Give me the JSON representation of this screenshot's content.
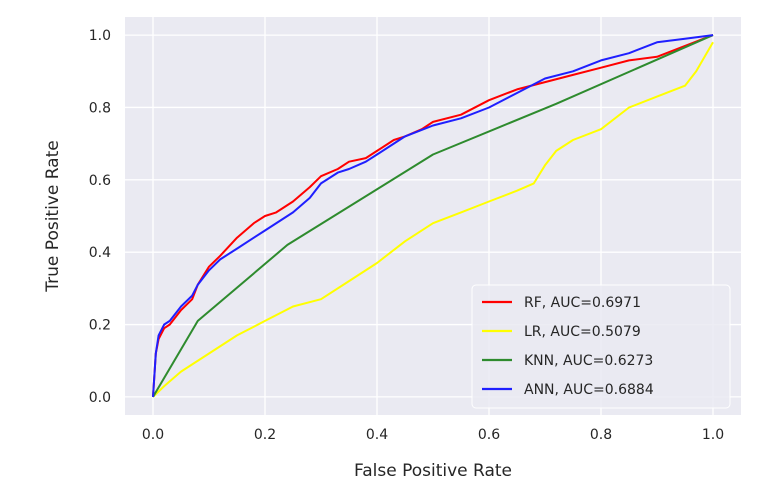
{
  "chart_data": {
    "type": "line",
    "xlabel": "False Positive Rate",
    "ylabel": "True Positive Rate",
    "xlim": [
      -0.05,
      1.05
    ],
    "ylim": [
      -0.05,
      1.05
    ],
    "xticks": [
      "0.0",
      "0.2",
      "0.4",
      "0.6",
      "0.8",
      "1.0"
    ],
    "yticks": [
      "0.0",
      "0.2",
      "0.4",
      "0.6",
      "0.8",
      "1.0"
    ],
    "grid": true,
    "legend_position": "lower-right",
    "series": [
      {
        "name": "RF, AUC=0.6971",
        "color": "#ff0000",
        "x": [
          0,
          0.005,
          0.01,
          0.02,
          0.03,
          0.05,
          0.07,
          0.08,
          0.1,
          0.12,
          0.15,
          0.18,
          0.2,
          0.22,
          0.25,
          0.28,
          0.3,
          0.33,
          0.35,
          0.38,
          0.4,
          0.43,
          0.45,
          0.48,
          0.5,
          0.55,
          0.6,
          0.65,
          0.7,
          0.75,
          0.8,
          0.85,
          0.9,
          0.95,
          1.0
        ],
        "y": [
          0,
          0.12,
          0.16,
          0.19,
          0.2,
          0.24,
          0.27,
          0.31,
          0.36,
          0.39,
          0.44,
          0.48,
          0.5,
          0.51,
          0.54,
          0.58,
          0.61,
          0.63,
          0.65,
          0.66,
          0.68,
          0.71,
          0.72,
          0.74,
          0.76,
          0.78,
          0.82,
          0.85,
          0.87,
          0.89,
          0.91,
          0.93,
          0.94,
          0.97,
          1.0
        ]
      },
      {
        "name": "LR, AUC=0.5079",
        "color": "#ffff00",
        "x": [
          0,
          0.02,
          0.05,
          0.1,
          0.15,
          0.2,
          0.25,
          0.3,
          0.35,
          0.4,
          0.45,
          0.5,
          0.55,
          0.6,
          0.65,
          0.68,
          0.7,
          0.72,
          0.75,
          0.8,
          0.85,
          0.9,
          0.95,
          0.97,
          1.0
        ],
        "y": [
          0,
          0.03,
          0.07,
          0.12,
          0.17,
          0.21,
          0.25,
          0.27,
          0.32,
          0.37,
          0.43,
          0.48,
          0.51,
          0.54,
          0.57,
          0.59,
          0.64,
          0.68,
          0.71,
          0.74,
          0.8,
          0.83,
          0.86,
          0.9,
          0.98
        ]
      },
      {
        "name": "KNN, AUC=0.6273",
        "color": "#2e8b2e",
        "x": [
          0,
          0.08,
          0.24,
          0.5,
          0.72,
          1.0
        ],
        "y": [
          0,
          0.21,
          0.42,
          0.67,
          0.81,
          1.0
        ]
      },
      {
        "name": "ANN, AUC=0.6884",
        "color": "#1f1fff",
        "x": [
          0,
          0.005,
          0.01,
          0.02,
          0.03,
          0.05,
          0.07,
          0.08,
          0.1,
          0.12,
          0.15,
          0.18,
          0.2,
          0.23,
          0.25,
          0.28,
          0.3,
          0.33,
          0.35,
          0.38,
          0.4,
          0.43,
          0.45,
          0.5,
          0.55,
          0.6,
          0.65,
          0.7,
          0.75,
          0.8,
          0.85,
          0.9,
          0.95,
          1.0
        ],
        "y": [
          0,
          0.12,
          0.17,
          0.2,
          0.21,
          0.25,
          0.28,
          0.31,
          0.35,
          0.38,
          0.41,
          0.44,
          0.46,
          0.49,
          0.51,
          0.55,
          0.59,
          0.62,
          0.63,
          0.65,
          0.67,
          0.7,
          0.72,
          0.75,
          0.77,
          0.8,
          0.84,
          0.88,
          0.9,
          0.93,
          0.95,
          0.98,
          0.99,
          1.0
        ]
      }
    ]
  }
}
